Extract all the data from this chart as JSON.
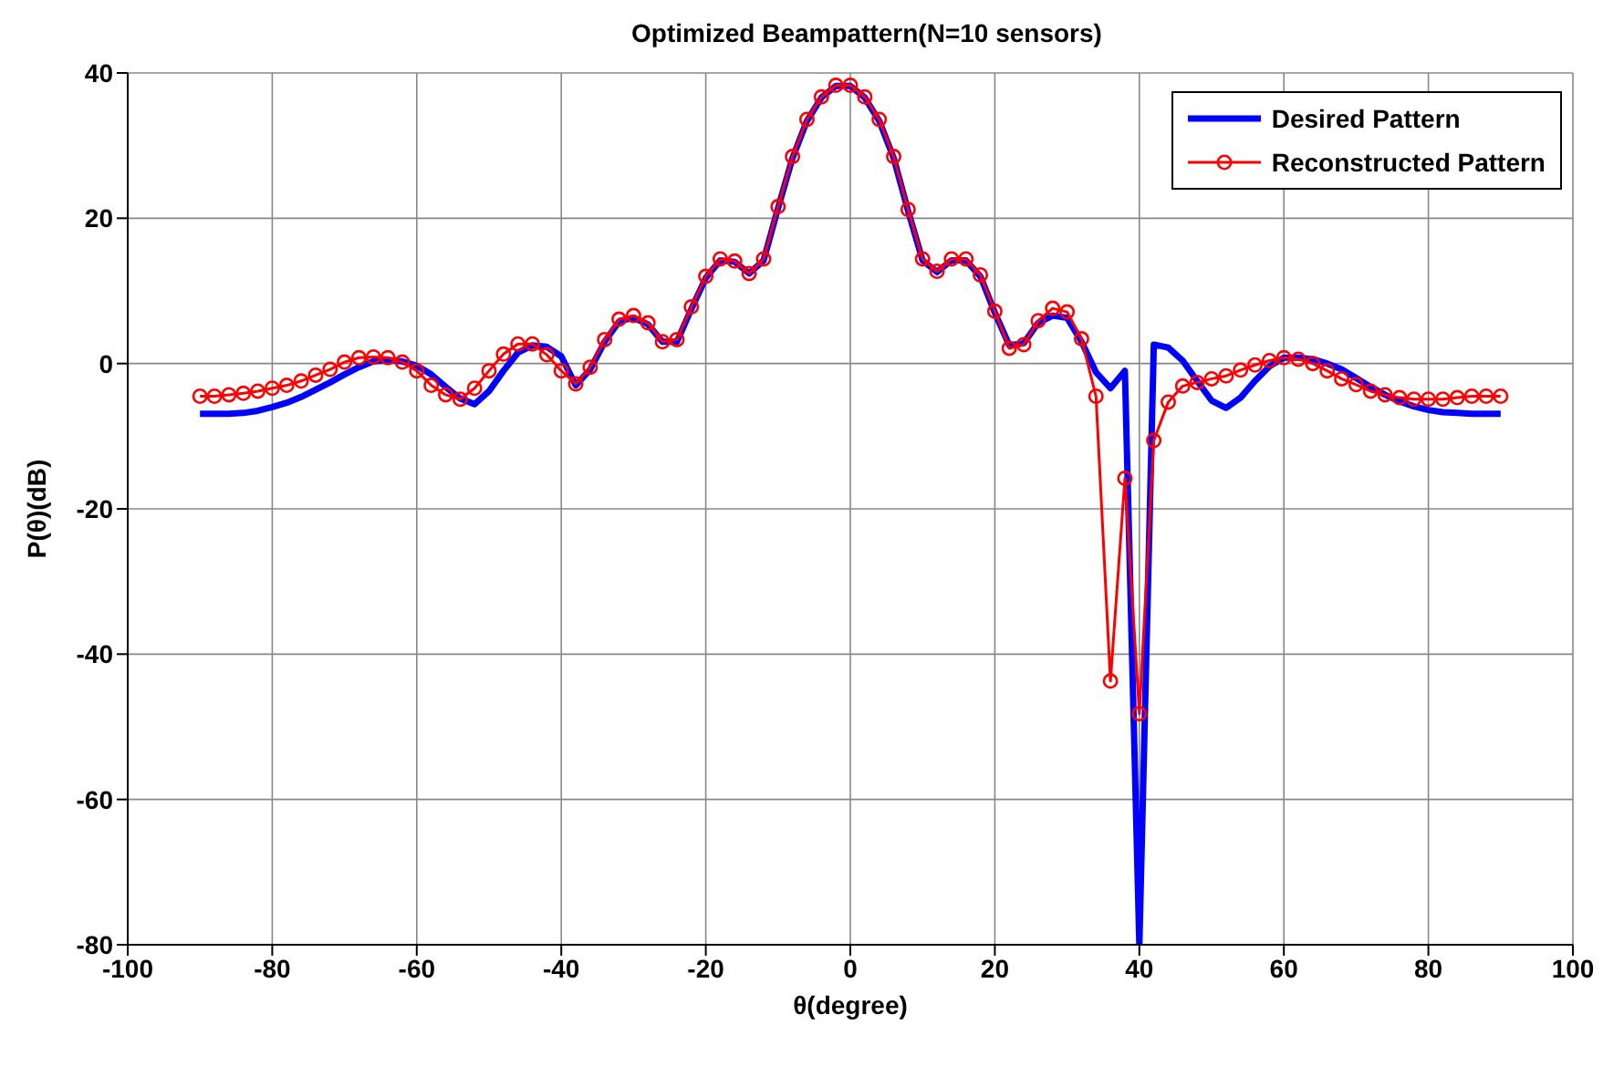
{
  "chart_data": {
    "type": "line",
    "title": "Optimized Beampattern(N=10 sensors)",
    "xlabel": "θ(degree)",
    "ylabel": "P(θ)(dB)",
    "x": [
      -90,
      -88,
      -86,
      -84,
      -82,
      -80,
      -78,
      -76,
      -74,
      -72,
      -70,
      -68,
      -66,
      -64,
      -62,
      -60,
      -58,
      -56,
      -54,
      -52,
      -50,
      -48,
      -46,
      -44,
      -42,
      -40,
      -38,
      -36,
      -34,
      -32,
      -30,
      -28,
      -26,
      -24,
      -22,
      -20,
      -18,
      -16,
      -14,
      -12,
      -10,
      -8,
      -6,
      -4,
      -2,
      0,
      2,
      4,
      6,
      8,
      10,
      12,
      14,
      16,
      18,
      20,
      22,
      24,
      26,
      28,
      30,
      32,
      34,
      36,
      38,
      40,
      42,
      44,
      46,
      48,
      50,
      52,
      54,
      56,
      58,
      60,
      62,
      64,
      66,
      68,
      70,
      72,
      74,
      76,
      78,
      80,
      82,
      84,
      86,
      88,
      90
    ],
    "series": [
      {
        "name": "Desired Pattern",
        "color": "#0000ff",
        "marker": "none",
        "values": [
          -6.9,
          -6.9,
          -6.9,
          -6.8,
          -6.5,
          -6.0,
          -5.4,
          -4.6,
          -3.6,
          -2.6,
          -1.5,
          -0.5,
          0.3,
          0.5,
          0.3,
          -0.3,
          -1.5,
          -3.2,
          -4.8,
          -5.6,
          -3.8,
          -1.0,
          1.5,
          2.5,
          2.3,
          1.0,
          -3.0,
          -0.8,
          3.0,
          5.8,
          6.3,
          5.4,
          3.0,
          3.0,
          7.5,
          11.8,
          14.2,
          14.0,
          12.4,
          14.2,
          21.4,
          28.3,
          33.4,
          36.6,
          38.2,
          38.2,
          36.6,
          33.4,
          28.3,
          21.0,
          14.2,
          12.6,
          14.2,
          14.2,
          12.0,
          7.0,
          2.5,
          2.8,
          5.6,
          6.6,
          6.3,
          3.0,
          -1.2,
          -3.4,
          -1.0,
          -80,
          2.6,
          2.2,
          0.4,
          -2.4,
          -5.1,
          -6.1,
          -4.7,
          -2.4,
          -0.4,
          0.8,
          0.8,
          0.6,
          0,
          -0.8,
          -2.0,
          -3.2,
          -4.3,
          -5.2,
          -5.9,
          -6.4,
          -6.7,
          -6.8,
          -6.9,
          -6.9,
          -6.9
        ]
      },
      {
        "name": "Reconstructed Pattern",
        "color": "#ff0000",
        "marker": "circle",
        "values": [
          -4.5,
          -4.5,
          -4.3,
          -4.1,
          -3.8,
          -3.4,
          -3.0,
          -2.4,
          -1.6,
          -0.8,
          0.2,
          0.8,
          0.9,
          0.8,
          0.2,
          -1.0,
          -3.0,
          -4.3,
          -4.9,
          -3.4,
          -1.0,
          1.3,
          2.7,
          2.7,
          1.2,
          -1.0,
          -2.8,
          -0.5,
          3.3,
          6.1,
          6.6,
          5.6,
          3.0,
          3.3,
          7.8,
          12.0,
          14.4,
          14.1,
          12.4,
          14.4,
          21.6,
          28.5,
          33.6,
          36.7,
          38.3,
          38.3,
          36.7,
          33.6,
          28.5,
          21.2,
          14.4,
          12.7,
          14.4,
          14.4,
          12.2,
          7.2,
          2.1,
          2.6,
          5.9,
          7.6,
          7.1,
          3.4,
          -4.5,
          -43.7,
          -15.8,
          -48.2,
          -10.6,
          -5.3,
          -3.1,
          -2.6,
          -2.1,
          -1.7,
          -0.9,
          -0.2,
          0.4,
          0.8,
          0.6,
          0,
          -1.0,
          -2.1,
          -2.9,
          -3.8,
          -4.3,
          -4.7,
          -4.9,
          -4.9,
          -4.9,
          -4.7,
          -4.5,
          -4.5,
          -4.5
        ]
      }
    ],
    "xlim": [
      -100,
      100
    ],
    "xticks": [
      -100,
      -80,
      -60,
      -40,
      -20,
      0,
      20,
      40,
      60,
      80,
      100
    ],
    "ylim": [
      -80,
      40
    ],
    "yticks": [
      -80,
      -60,
      -40,
      -20,
      0,
      20,
      40
    ],
    "grid": true,
    "legend": "top right",
    "line_style": "solid"
  }
}
